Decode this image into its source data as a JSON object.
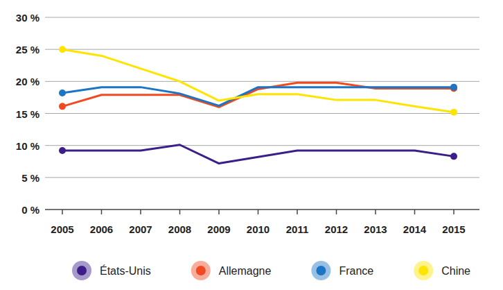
{
  "chart_data": {
    "type": "line",
    "categories": [
      "2005",
      "2006",
      "2007",
      "2008",
      "2009",
      "2010",
      "2011",
      "2012",
      "2013",
      "2014",
      "2015"
    ],
    "series": [
      {
        "name": "États-Unis",
        "color": "#3b1e8a",
        "values": [
          9.2,
          9.2,
          9.2,
          10.1,
          7.2,
          8.2,
          9.2,
          9.2,
          9.2,
          9.2,
          8.3
        ]
      },
      {
        "name": "Allemagne",
        "color": "#f04a23",
        "values": [
          16.1,
          17.9,
          17.9,
          17.9,
          16,
          18.8,
          19.8,
          19.8,
          18.9,
          18.9,
          18.9
        ]
      },
      {
        "name": "France",
        "color": "#1b74c4",
        "values": [
          18.2,
          19.1,
          19.1,
          18.1,
          16.2,
          19.1,
          19.1,
          19.1,
          19.1,
          19.1,
          19.1
        ]
      },
      {
        "name": "Chine",
        "color": "#ffe400",
        "values": [
          25,
          24,
          22,
          20,
          17,
          18,
          18,
          17.1,
          17.1,
          16.1,
          15.2
        ]
      }
    ],
    "ylim": [
      0,
      30
    ],
    "yticks": [
      {
        "value": 0,
        "label": "0 %"
      },
      {
        "value": 5,
        "label": "5 %"
      },
      {
        "value": 10,
        "label": "10 %"
      },
      {
        "value": 15,
        "label": "15 %"
      },
      {
        "value": 20,
        "label": "20 %"
      },
      {
        "value": 25,
        "label": "25 %"
      },
      {
        "value": 30,
        "label": "30 %"
      }
    ],
    "grid": true,
    "legend": "bottom",
    "marker": "endpoints"
  }
}
